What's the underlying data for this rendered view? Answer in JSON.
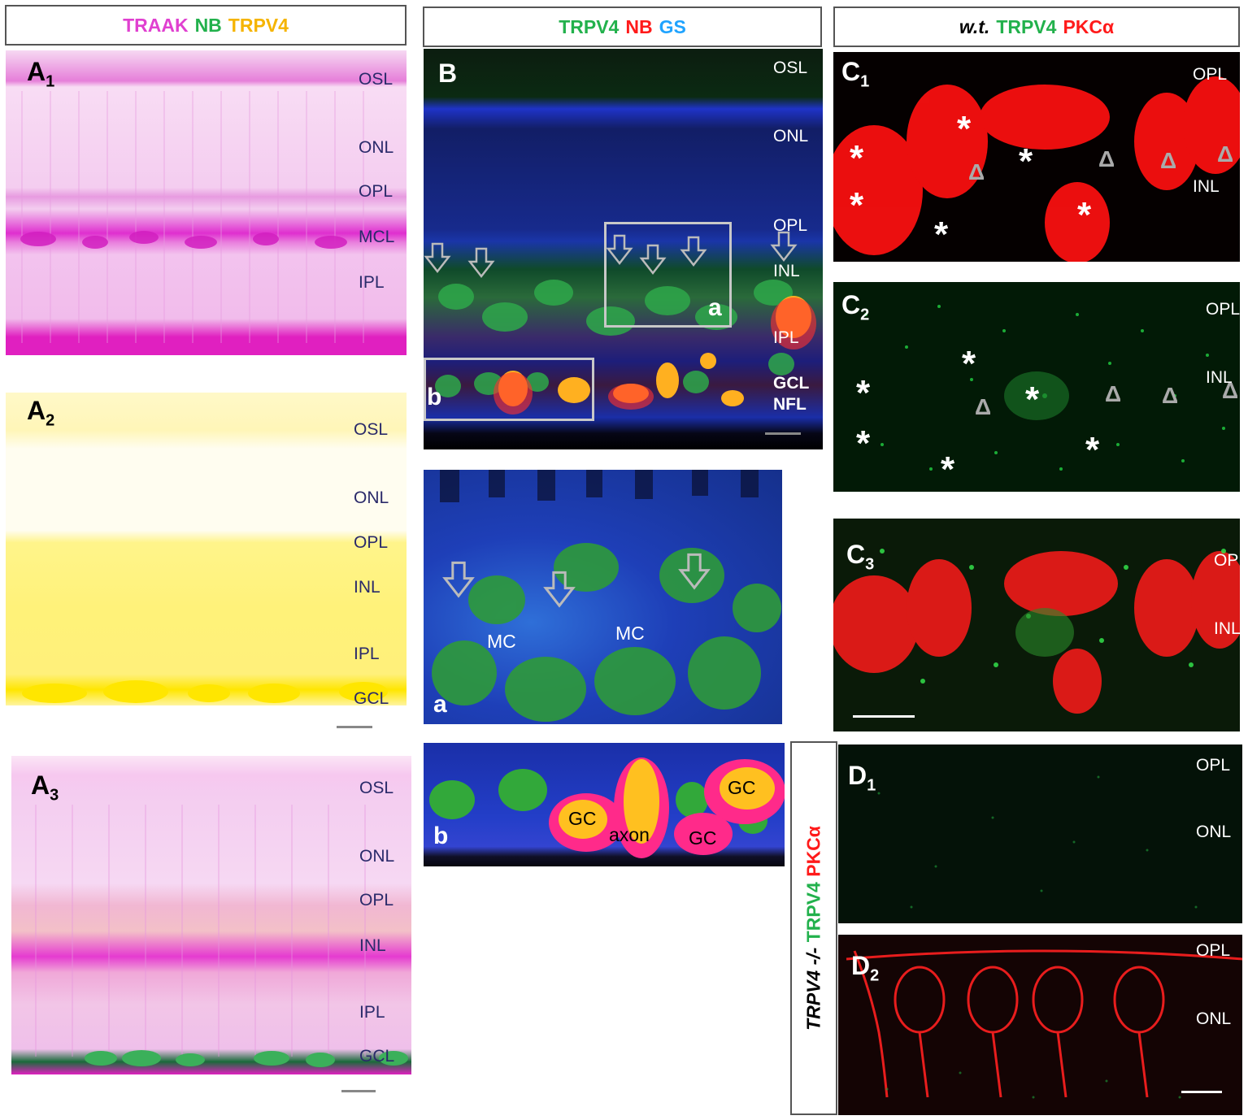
{
  "headers": {
    "a": [
      {
        "text": "TRAAK",
        "color": "#e040d0"
      },
      {
        "text": "NB",
        "color": "#22b14c"
      },
      {
        "text": "TRPV4",
        "color": "#f5b400"
      }
    ],
    "b": [
      {
        "text": "TRPV4",
        "color": "#22b14c"
      },
      {
        "text": "NB",
        "color": "#ff1a1a"
      },
      {
        "text": "GS",
        "color": "#1fa3ff"
      }
    ],
    "c": [
      {
        "text": "w.t.",
        "color": "#000000"
      },
      {
        "text": "TRPV4",
        "color": "#22b14c"
      },
      {
        "text": "PKCα",
        "color": "#ff1a1a"
      }
    ],
    "d_side": [
      {
        "text": "TRPV4 -/-",
        "color": "#000000"
      },
      {
        "text": "TRPV4",
        "color": "#22b14c"
      },
      {
        "text": "PKCα",
        "color": "#ff1a1a"
      }
    ]
  },
  "panels": {
    "A1": {
      "label": "A",
      "sub": "1",
      "layers": [
        "OSL",
        "ONL",
        "OPL",
        "MCL",
        "IPL"
      ]
    },
    "A2": {
      "label": "A",
      "sub": "2",
      "layers": [
        "OSL",
        "ONL",
        "OPL",
        "INL",
        "IPL",
        "GCL"
      ]
    },
    "A3": {
      "label": "A",
      "sub": "3",
      "layers": [
        "OSL",
        "ONL",
        "OPL",
        "INL",
        "IPL",
        "GCL"
      ]
    },
    "B": {
      "label": "B",
      "layers": [
        "OSL",
        "ONL",
        "OPL",
        "INL",
        "IPL",
        "GCL",
        "NFL"
      ],
      "inset_a": "a",
      "inset_b": "b"
    },
    "Ba": {
      "label": "a",
      "cells": [
        "MC",
        "MC"
      ]
    },
    "Bb": {
      "label": "b",
      "cells": [
        "GC",
        "axon",
        "GC",
        "GC"
      ]
    },
    "C1": {
      "label": "C",
      "sub": "1",
      "layers": [
        "OPL",
        "INL"
      ]
    },
    "C2": {
      "label": "C",
      "sub": "2",
      "layers": [
        "OPL",
        "INL"
      ]
    },
    "C3": {
      "label": "C",
      "sub": "3",
      "layers": [
        "OP",
        "INL"
      ]
    },
    "D1": {
      "label": "D",
      "sub": "1",
      "layers": [
        "OPL",
        "ONL"
      ]
    },
    "D2": {
      "label": "D",
      "sub": "2",
      "layers": [
        "OPL",
        "ONL"
      ]
    }
  },
  "symbols": {
    "asterisk": "*",
    "triangle": "Δ"
  }
}
